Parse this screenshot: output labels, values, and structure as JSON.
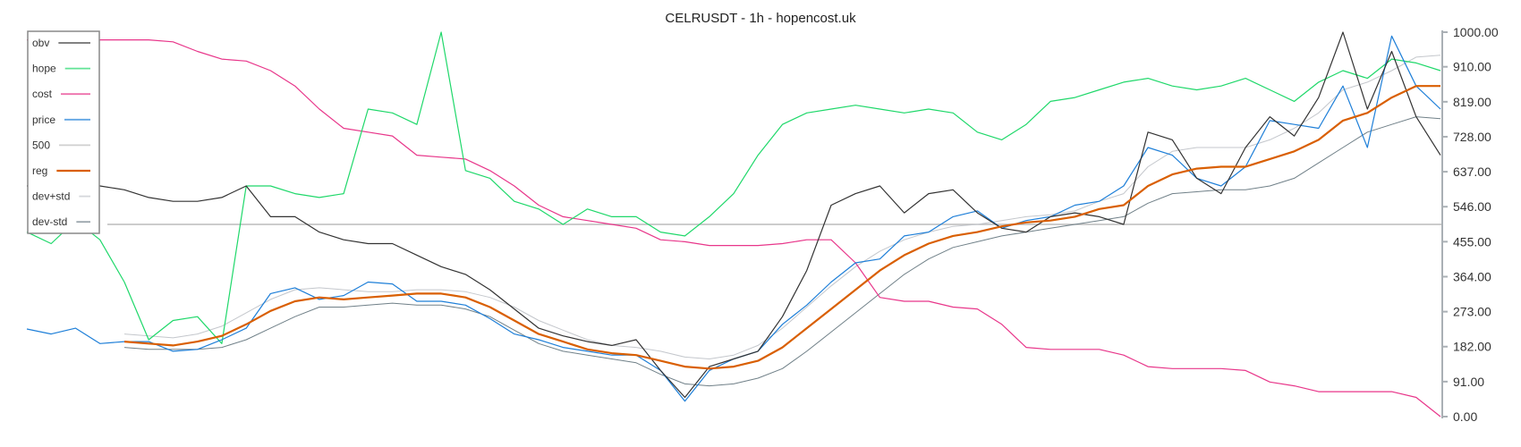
{
  "chart_data": {
    "type": "line",
    "title": "CELRUSDT - 1h - hopencost.uk",
    "xlabel": "",
    "ylabel": "",
    "ylim": [
      0,
      1000
    ],
    "yticks": [
      "1000.00",
      "910.00",
      "819.00",
      "728.00",
      "637.00",
      "546.00",
      "455.00",
      "364.00",
      "273.00",
      "182.00",
      "91.00",
      "0.00"
    ],
    "y_axis_side": "right",
    "grid": false,
    "legend_placement": "top-left",
    "x": [
      0,
      1,
      2,
      3,
      4,
      5,
      6,
      7,
      8,
      9,
      10,
      11,
      12,
      13,
      14,
      15,
      16,
      17,
      18,
      19,
      20,
      21,
      22,
      23,
      24,
      25,
      26,
      27,
      28,
      29,
      30,
      31,
      32,
      33,
      34,
      35,
      36,
      37,
      38,
      39,
      40,
      41,
      42,
      43,
      44,
      45,
      46,
      47,
      48,
      49,
      50,
      51,
      52,
      53,
      54,
      55,
      56,
      57,
      58
    ],
    "series": [
      {
        "name": "obv",
        "color": "#333333",
        "width": 1.2,
        "values": [
          600,
          600,
          600,
          600,
          590,
          570,
          560,
          560,
          570,
          600,
          520,
          520,
          480,
          460,
          450,
          450,
          420,
          390,
          370,
          330,
          280,
          230,
          210,
          195,
          185,
          200,
          120,
          50,
          130,
          150,
          170,
          260,
          380,
          550,
          580,
          600,
          530,
          580,
          590,
          530,
          490,
          480,
          520,
          530,
          520,
          500,
          740,
          720,
          620,
          580,
          700,
          780,
          730,
          830,
          1000,
          800,
          950,
          780,
          680
        ]
      },
      {
        "name": "hope",
        "color": "#1fd86a",
        "width": 1.2,
        "values": [
          480,
          450,
          510,
          460,
          350,
          200,
          250,
          260,
          190,
          600,
          600,
          580,
          570,
          580,
          800,
          790,
          760,
          1000,
          640,
          620,
          560,
          540,
          500,
          540,
          520,
          520,
          480,
          470,
          520,
          580,
          680,
          760,
          790,
          800,
          810,
          800,
          790,
          800,
          790,
          740,
          720,
          760,
          820,
          830,
          850,
          870,
          880,
          860,
          850,
          860,
          880,
          850,
          820,
          870,
          900,
          880,
          930,
          920,
          900
        ]
      },
      {
        "name": "cost",
        "color": "#e8368a",
        "width": 1.2,
        "values": [
          980,
          980,
          980,
          980,
          980,
          980,
          975,
          950,
          930,
          925,
          900,
          860,
          800,
          750,
          740,
          730,
          680,
          675,
          670,
          640,
          600,
          550,
          520,
          510,
          500,
          490,
          460,
          455,
          445,
          445,
          445,
          450,
          460,
          460,
          400,
          310,
          300,
          300,
          285,
          280,
          240,
          180,
          175,
          175,
          175,
          160,
          130,
          125,
          125,
          125,
          120,
          90,
          80,
          65,
          65,
          65,
          65,
          50,
          0
        ]
      },
      {
        "name": "price",
        "color": "#1e7fd8",
        "width": 1.2,
        "values": [
          228,
          215,
          230,
          190,
          195,
          195,
          170,
          175,
          200,
          230,
          320,
          335,
          305,
          315,
          350,
          345,
          300,
          300,
          290,
          255,
          215,
          200,
          180,
          170,
          160,
          160,
          120,
          40,
          120,
          150,
          170,
          240,
          290,
          350,
          400,
          410,
          470,
          480,
          520,
          535,
          490,
          510,
          520,
          550,
          560,
          600,
          700,
          680,
          620,
          600,
          650,
          770,
          760,
          750,
          860,
          700,
          990,
          860,
          800
        ]
      },
      {
        "name": "500",
        "color": "#bbbbbb",
        "width": 1.5,
        "constant": 500
      },
      {
        "name": "reg",
        "color": "#d95f02",
        "width": 2.2,
        "values": [
          null,
          null,
          null,
          null,
          195,
          190,
          185,
          195,
          210,
          240,
          275,
          300,
          310,
          305,
          310,
          315,
          320,
          320,
          310,
          285,
          250,
          215,
          195,
          175,
          165,
          160,
          145,
          130,
          125,
          130,
          145,
          180,
          230,
          280,
          330,
          380,
          420,
          450,
          470,
          480,
          495,
          505,
          510,
          520,
          540,
          550,
          600,
          630,
          645,
          650,
          650,
          670,
          690,
          720,
          770,
          790,
          830,
          860,
          860
        ]
      },
      {
        "name": "dev+std",
        "color": "#c4c7cc",
        "width": 1,
        "values": [
          null,
          null,
          null,
          null,
          215,
          210,
          205,
          215,
          235,
          270,
          305,
          330,
          335,
          330,
          325,
          325,
          330,
          330,
          325,
          310,
          285,
          250,
          225,
          200,
          185,
          180,
          170,
          155,
          150,
          160,
          185,
          230,
          285,
          340,
          390,
          430,
          460,
          480,
          495,
          500,
          510,
          520,
          525,
          535,
          560,
          580,
          650,
          690,
          700,
          700,
          700,
          720,
          750,
          790,
          850,
          870,
          900,
          935,
          940
        ]
      },
      {
        "name": "dev-std",
        "color": "#708088",
        "width": 1,
        "values": [
          null,
          null,
          null,
          null,
          180,
          175,
          175,
          175,
          180,
          200,
          230,
          260,
          285,
          285,
          290,
          295,
          290,
          290,
          280,
          260,
          225,
          190,
          170,
          160,
          150,
          140,
          110,
          85,
          80,
          85,
          100,
          125,
          170,
          220,
          270,
          320,
          370,
          410,
          440,
          455,
          470,
          480,
          490,
          500,
          510,
          520,
          555,
          580,
          585,
          590,
          590,
          600,
          620,
          660,
          700,
          740,
          760,
          780,
          775
        ]
      }
    ]
  }
}
